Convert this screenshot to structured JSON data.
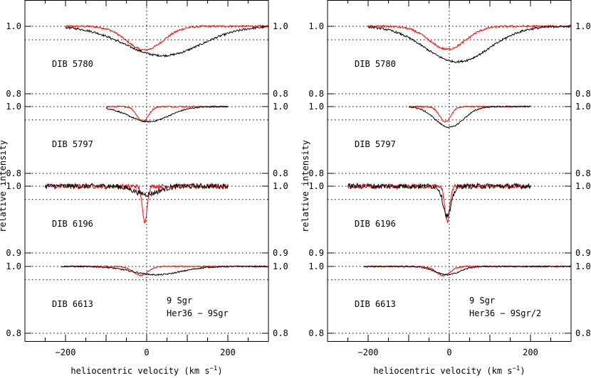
{
  "chart_data": [
    {
      "type": "line",
      "panel": "left",
      "xlabel": "heliocentric velocity (km s",
      "xlabel_sup": "−1",
      "xlabel_close": ")",
      "ylabel": "relative intensity",
      "xlim": [
        -300,
        300
      ],
      "x_ticks": [
        -200,
        0,
        200
      ],
      "vertical_ref_x": 0,
      "legend": [
        {
          "label": "9 Sgr",
          "color": "#ff0000"
        },
        {
          "label": "Her36 − 9Sgr",
          "color": "#000000"
        }
      ],
      "sub_panels": [
        {
          "label": "DIB 5780",
          "ylim": [
            0.75,
            1.03
          ],
          "y_ticks": [
            1.0,
            0.8
          ],
          "tick_labels": [
            "1.0",
            "0.8"
          ],
          "ref_levels": [
            1.0,
            0.96,
            0.8
          ],
          "x_range": [
            -200,
            300
          ],
          "series": [
            {
              "name": "9 Sgr",
              "color": "#ff0000",
              "center": -5,
              "depth": 0.07,
              "width": 45,
              "noise": 0.003
            },
            {
              "name": "Her36 − 9Sgr",
              "color": "#000000",
              "center": 40,
              "depth": 0.087,
              "width": 95,
              "noise": 0.003
            }
          ]
        },
        {
          "label": "DIB 5797",
          "ylim": [
            0.75,
            1.03
          ],
          "y_ticks": [
            1.0,
            0.8
          ],
          "tick_labels": [
            "1.0",
            "0.8"
          ],
          "ref_levels": [
            1.0,
            0.96,
            0.8
          ],
          "x_range": [
            -100,
            200
          ],
          "series": [
            {
              "name": "9 Sgr",
              "color": "#ff0000",
              "center": -10,
              "depth": 0.045,
              "width": 14,
              "noise": 0.002
            },
            {
              "name": "Her36 − 9Sgr",
              "color": "#000000",
              "center": 5,
              "depth": 0.045,
              "width": 50,
              "noise": 0.002
            }
          ]
        },
        {
          "label": "DIB 6196",
          "ylim": [
            0.83,
            1.03
          ],
          "y_ticks": [
            1.0,
            0.9
          ],
          "tick_labels": [
            "1.0",
            "0.9"
          ],
          "ref_levels": [
            1.0,
            0.98,
            0.9
          ],
          "x_range": [
            -250,
            200
          ],
          "series": [
            {
              "name": "9 Sgr",
              "color": "#ff0000",
              "center": -5,
              "depth": 0.053,
              "width": 6,
              "noise": 0.003
            },
            {
              "name": "Her36 − 9Sgr",
              "color": "#000000",
              "center": 0,
              "depth": 0.012,
              "width": 30,
              "noise": 0.004
            }
          ]
        },
        {
          "label": "DIB 6613",
          "ylim": [
            0.75,
            1.03
          ],
          "y_ticks": [
            1.0,
            0.8
          ],
          "tick_labels": [
            "1.0",
            "0.8"
          ],
          "ref_levels": [
            1.0,
            0.96,
            0.8
          ],
          "x_range": [
            -210,
            300
          ],
          "series": [
            {
              "name": "9 Sgr",
              "color": "#ff0000",
              "center": -15,
              "depth": 0.027,
              "width": 18,
              "noise": 0.002
            },
            {
              "name": "Her36 − 9Sgr",
              "color": "#000000",
              "center": 25,
              "depth": 0.025,
              "width": 60,
              "noise": 0.002
            }
          ]
        }
      ]
    },
    {
      "type": "line",
      "panel": "right",
      "xlabel": "heliocentric velocity (km s",
      "xlabel_sup": "−1",
      "xlabel_close": ")",
      "ylabel": "relative intensity",
      "xlim": [
        -300,
        300
      ],
      "x_ticks": [
        -200,
        0,
        200
      ],
      "vertical_ref_x": 0,
      "legend": [
        {
          "label": "9 Sgr",
          "color": "#ff0000"
        },
        {
          "label": "Her36 − 9Sgr/2",
          "color": "#000000"
        }
      ],
      "sub_panels": [
        {
          "label": "DIB 5780",
          "ylim": [
            0.75,
            1.03
          ],
          "y_ticks": [
            1.0,
            0.8
          ],
          "tick_labels": [
            "1.0",
            "0.8"
          ],
          "ref_levels": [
            1.0,
            0.96,
            0.8
          ],
          "x_range": [
            -200,
            300
          ],
          "series": [
            {
              "name": "9 Sgr",
              "color": "#ff0000",
              "center": -5,
              "depth": 0.068,
              "width": 45,
              "noise": 0.003
            },
            {
              "name": "Her36 − 9Sgr/2",
              "color": "#000000",
              "center": 20,
              "depth": 0.105,
              "width": 80,
              "noise": 0.003
            }
          ]
        },
        {
          "label": "DIB 5797",
          "ylim": [
            0.75,
            1.03
          ],
          "y_ticks": [
            1.0,
            0.8
          ],
          "tick_labels": [
            "1.0",
            "0.8"
          ],
          "ref_levels": [
            1.0,
            0.96,
            0.8
          ],
          "x_range": [
            -100,
            200
          ],
          "series": [
            {
              "name": "9 Sgr",
              "color": "#ff0000",
              "center": -10,
              "depth": 0.045,
              "width": 14,
              "noise": 0.002
            },
            {
              "name": "Her36 − 9Sgr/2",
              "color": "#000000",
              "center": 0,
              "depth": 0.062,
              "width": 35,
              "noise": 0.002
            }
          ]
        },
        {
          "label": "DIB 6196",
          "ylim": [
            0.83,
            1.03
          ],
          "y_ticks": [
            1.0,
            0.9
          ],
          "tick_labels": [
            "1.0",
            "0.9"
          ],
          "ref_levels": [
            1.0,
            0.98,
            0.9
          ],
          "x_range": [
            -250,
            200
          ],
          "series": [
            {
              "name": "9 Sgr",
              "color": "#ff0000",
              "center": -5,
              "depth": 0.053,
              "width": 6,
              "noise": 0.003
            },
            {
              "name": "Her36 − 9Sgr/2",
              "color": "#000000",
              "center": -5,
              "depth": 0.045,
              "width": 10,
              "noise": 0.004
            }
          ]
        },
        {
          "label": "DIB 6613",
          "ylim": [
            0.75,
            1.03
          ],
          "y_ticks": [
            1.0,
            0.8
          ],
          "tick_labels": [
            "1.0",
            "0.8"
          ],
          "ref_levels": [
            1.0,
            0.96,
            0.8
          ],
          "x_range": [
            -210,
            300
          ],
          "series": [
            {
              "name": "9 Sgr",
              "color": "#ff0000",
              "center": -15,
              "depth": 0.027,
              "width": 18,
              "noise": 0.002
            },
            {
              "name": "Her36 − 9Sgr/2",
              "color": "#000000",
              "center": -5,
              "depth": 0.025,
              "width": 30,
              "noise": 0.002
            }
          ]
        }
      ]
    }
  ]
}
